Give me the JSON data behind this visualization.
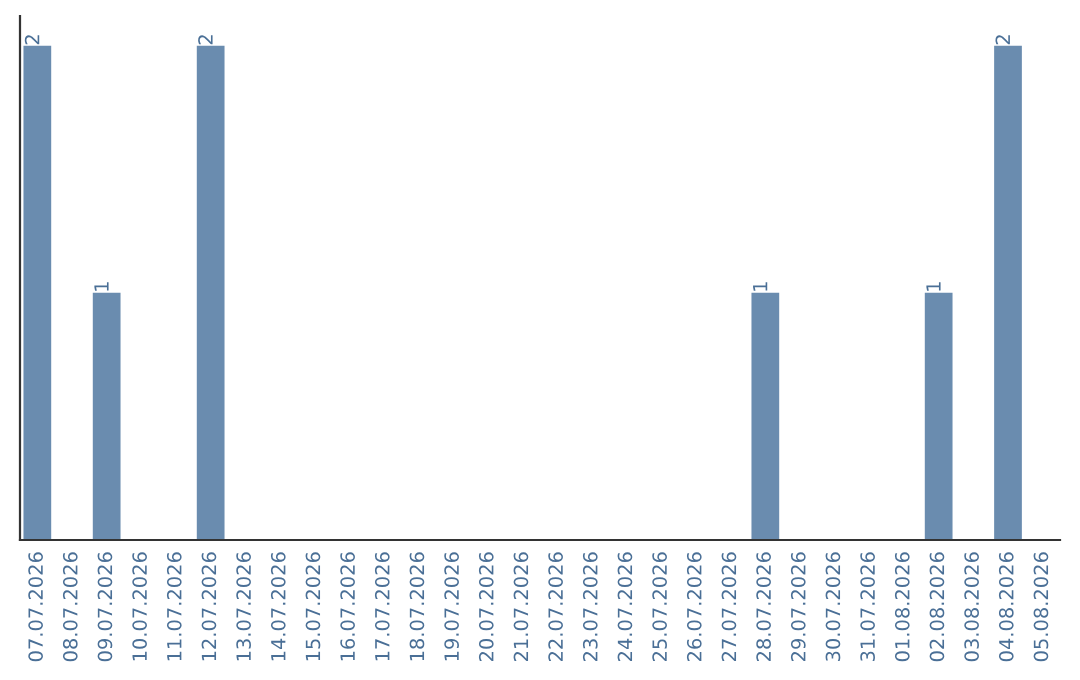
{
  "chart_data": {
    "type": "bar",
    "categories": [
      "07.07.2026",
      "08.07.2026",
      "09.07.2026",
      "10.07.2026",
      "11.07.2026",
      "12.07.2026",
      "13.07.2026",
      "14.07.2026",
      "15.07.2026",
      "16.07.2026",
      "17.07.2026",
      "18.07.2026",
      "19.07.2026",
      "20.07.2026",
      "21.07.2026",
      "22.07.2026",
      "23.07.2026",
      "24.07.2026",
      "25.07.2026",
      "26.07.2026",
      "27.07.2026",
      "28.07.2026",
      "29.07.2026",
      "30.07.2026",
      "31.07.2026",
      "01.08.2026",
      "02.08.2026",
      "03.08.2026",
      "04.08.2026",
      "05.08.2026"
    ],
    "values": [
      2,
      0,
      1,
      0,
      0,
      2,
      0,
      0,
      0,
      0,
      0,
      0,
      0,
      0,
      0,
      0,
      0,
      0,
      0,
      0,
      0,
      1,
      0,
      0,
      0,
      0,
      1,
      0,
      2,
      0
    ],
    "value_labels": [
      "2",
      null,
      "1",
      null,
      null,
      "2",
      null,
      null,
      null,
      null,
      null,
      null,
      null,
      null,
      null,
      null,
      null,
      null,
      null,
      null,
      null,
      "1",
      null,
      null,
      null,
      null,
      "1",
      null,
      "2",
      null
    ],
    "color": "#6a8caf",
    "grid": false,
    "legend": false
  }
}
